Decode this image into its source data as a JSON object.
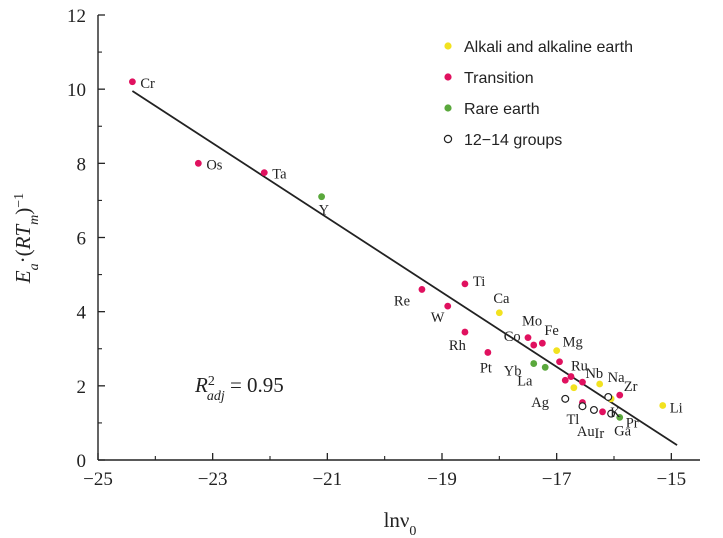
{
  "chart_data": {
    "type": "scatter",
    "xlabel": "lnν",
    "xlabel_sub": "0",
    "ylabel": {
      "E": "E",
      "a": "a",
      "sep": "·(",
      "RT": "RT",
      "m": "m",
      "close": ")",
      "exp": "−1"
    },
    "xlim": [
      -25,
      -14.5
    ],
    "ylim": [
      0,
      12
    ],
    "xticks": [
      "−25",
      "−23",
      "−21",
      "−19",
      "−17",
      "−15"
    ],
    "xtick_values": [
      -25,
      -23,
      -21,
      -19,
      -17,
      -15
    ],
    "yticks": [
      "0",
      "2",
      "4",
      "6",
      "8",
      "10",
      "12"
    ],
    "ytick_values": [
      0,
      2,
      4,
      6,
      8,
      10,
      12
    ],
    "grid": false,
    "legend_position": "top-right",
    "annotation": {
      "R": "R",
      "sup": "2",
      "sub": "adj",
      "eq": " = 0.95"
    },
    "fit_line": {
      "x": [
        -24.4,
        -14.9
      ],
      "y": [
        9.95,
        0.4
      ]
    },
    "series": [
      {
        "name": "Alkali and alkaline earth",
        "color": "#f2e21f",
        "marker": "filled",
        "points": [
          {
            "label": "Ca",
            "x": -18.0,
            "y": 3.97
          },
          {
            "label": "Mg",
            "x": -17.0,
            "y": 2.95
          },
          {
            "label": "Na",
            "x": -16.25,
            "y": 2.05
          },
          {
            "label": "K",
            "x": -16.05,
            "y": 1.65
          },
          {
            "label": "Li",
            "x": -15.15,
            "y": 1.47
          },
          {
            "label": "",
            "x": -16.7,
            "y": 1.95
          }
        ]
      },
      {
        "name": "Transition",
        "color": "#e0115f",
        "marker": "filled",
        "points": [
          {
            "label": "Cr",
            "x": -24.4,
            "y": 10.2
          },
          {
            "label": "Os",
            "x": -23.25,
            "y": 8.0
          },
          {
            "label": "Ta",
            "x": -22.1,
            "y": 7.75
          },
          {
            "label": "Re",
            "x": -19.35,
            "y": 4.6
          },
          {
            "label": "Ti",
            "x": -18.6,
            "y": 4.75
          },
          {
            "label": "W",
            "x": -18.9,
            "y": 4.15
          },
          {
            "label": "Rh",
            "x": -18.6,
            "y": 3.45
          },
          {
            "label": "Pt",
            "x": -18.2,
            "y": 2.9
          },
          {
            "label": "Mo",
            "x": -17.5,
            "y": 3.3
          },
          {
            "label": "Co",
            "x": -17.4,
            "y": 3.1
          },
          {
            "label": "Fe",
            "x": -17.25,
            "y": 3.15
          },
          {
            "label": "Ru",
            "x": -16.75,
            "y": 2.25
          },
          {
            "label": "Nb",
            "x": -16.55,
            "y": 2.1
          },
          {
            "label": "Zr",
            "x": -15.9,
            "y": 1.75
          },
          {
            "label": "Ir",
            "x": -16.2,
            "y": 1.3
          },
          {
            "label": "",
            "x": -16.95,
            "y": 2.65
          },
          {
            "label": "",
            "x": -16.85,
            "y": 2.15
          },
          {
            "label": "",
            "x": -16.55,
            "y": 1.55
          }
        ]
      },
      {
        "name": "Rare earth",
        "color": "#5aa83c",
        "marker": "filled",
        "points": [
          {
            "label": "Y",
            "x": -21.1,
            "y": 7.1
          },
          {
            "label": "Yb",
            "x": -17.4,
            "y": 2.6
          },
          {
            "label": "La",
            "x": -17.2,
            "y": 2.5
          },
          {
            "label": "Pr",
            "x": -15.9,
            "y": 1.15
          }
        ]
      },
      {
        "name": "12−14 groups",
        "color": "#222222",
        "marker": "open",
        "points": [
          {
            "label": "Ag",
            "x": -16.85,
            "y": 1.65
          },
          {
            "label": "Tl",
            "x": -16.55,
            "y": 1.45
          },
          {
            "label": "Au",
            "x": -16.35,
            "y": 1.35
          },
          {
            "label": "Ga",
            "x": -16.05,
            "y": 1.25
          },
          {
            "label": "",
            "x": -16.1,
            "y": 1.7
          }
        ]
      }
    ]
  }
}
